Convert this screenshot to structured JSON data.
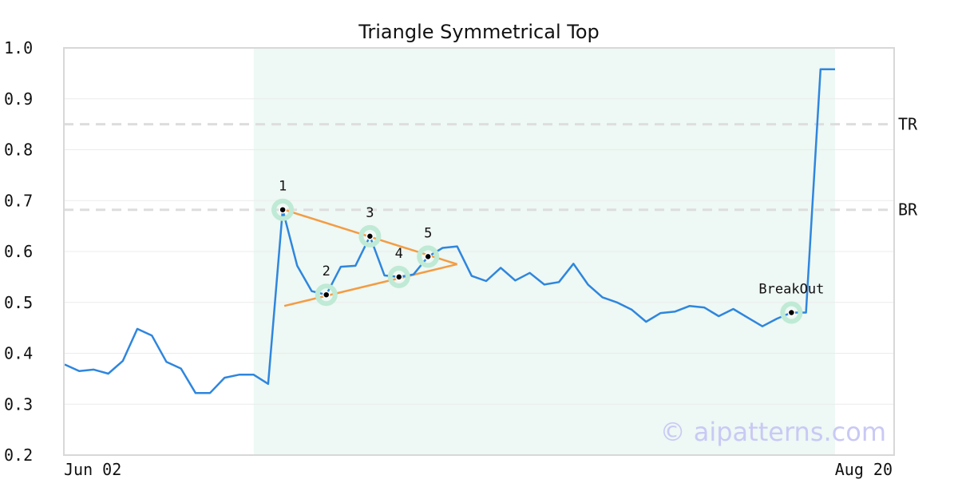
{
  "chart_data": {
    "type": "line",
    "title": "Triangle Symmetrical Top",
    "ylim": [
      0.2,
      1.0
    ],
    "y_ticks": [
      "0.2",
      "0.3",
      "0.4",
      "0.5",
      "0.6",
      "0.7",
      "0.8",
      "0.9",
      "1.0"
    ],
    "x_tick_labels": [
      "Jun 02",
      "Aug 20"
    ],
    "grid": true,
    "series": [
      {
        "color": "#2e86de",
        "values": [
          0.378,
          0.365,
          0.368,
          0.36,
          0.385,
          0.448,
          0.435,
          0.383,
          0.37,
          0.322,
          0.322,
          0.352,
          0.358,
          0.358,
          0.34,
          0.682,
          0.572,
          0.522,
          0.515,
          0.57,
          0.572,
          0.63,
          0.553,
          0.55,
          0.555,
          0.59,
          0.607,
          0.61,
          0.552,
          0.542,
          0.568,
          0.543,
          0.558,
          0.535,
          0.54,
          0.576,
          0.535,
          0.51,
          0.5,
          0.486,
          0.462,
          0.479,
          0.482,
          0.493,
          0.49,
          0.473,
          0.487,
          0.47,
          0.453,
          0.468,
          0.48,
          0.48,
          0.958,
          0.958
        ]
      }
    ],
    "levels": [
      {
        "label": "TR",
        "value": 0.85
      },
      {
        "label": "BR",
        "value": 0.682
      }
    ],
    "highlight_range": [
      13,
      53
    ],
    "triangle_lines": [
      {
        "from": [
          15,
          0.682
        ],
        "to": [
          27,
          0.575
        ]
      },
      {
        "from": [
          15,
          0.493
        ],
        "to": [
          27,
          0.575
        ]
      }
    ],
    "pattern_points": [
      {
        "label": "1",
        "index": 15,
        "value": 0.682
      },
      {
        "label": "2",
        "index": 18,
        "value": 0.515
      },
      {
        "label": "3",
        "index": 21,
        "value": 0.63
      },
      {
        "label": "4",
        "index": 23,
        "value": 0.55
      },
      {
        "label": "5",
        "index": 25,
        "value": 0.59
      },
      {
        "label": "BreakOut",
        "index": 50,
        "value": 0.48
      }
    ],
    "colors": {
      "price": "#2e86de",
      "triangle": "#f39c43",
      "highlight": "#eef8f4",
      "marker_ring": "#bfead5",
      "level": "#dddddd"
    },
    "watermark": "© aipatterns.com"
  }
}
